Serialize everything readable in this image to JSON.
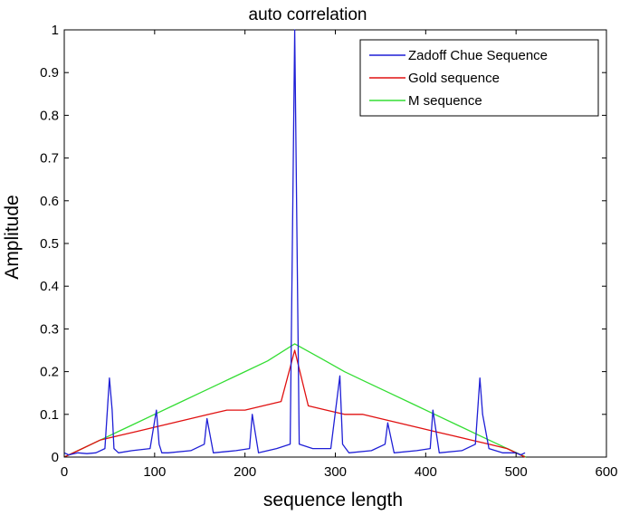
{
  "chart_data": {
    "type": "line",
    "title": "auto correlation",
    "xlabel": "sequence length",
    "ylabel": "Amplitude",
    "xlim": [
      0,
      600
    ],
    "ylim": [
      0,
      1
    ],
    "xticks": [
      "0",
      "100",
      "200",
      "300",
      "400",
      "500",
      "600"
    ],
    "yticks": [
      "0",
      "0.1",
      "0.2",
      "0.3",
      "0.4",
      "0.5",
      "0.6",
      "0.7",
      "0.8",
      "0.9",
      "1"
    ],
    "grid": false,
    "legend_position": "top-right",
    "series": [
      {
        "name": "Zadoff Chue Sequence",
        "color": "#1f1fd6",
        "x": [
          0,
          5,
          15,
          25,
          35,
          45,
          50,
          53,
          55,
          60,
          75,
          95,
          102,
          105,
          108,
          115,
          140,
          155,
          158,
          165,
          190,
          205,
          208,
          215,
          235,
          250,
          255,
          260,
          275,
          295,
          305,
          308,
          315,
          340,
          355,
          358,
          365,
          390,
          405,
          408,
          415,
          440,
          455,
          460,
          463,
          470,
          485,
          500,
          505,
          510
        ],
        "y": [
          0.01,
          0.005,
          0.01,
          0.008,
          0.01,
          0.02,
          0.185,
          0.11,
          0.02,
          0.01,
          0.015,
          0.02,
          0.11,
          0.03,
          0.01,
          0.01,
          0.015,
          0.03,
          0.09,
          0.01,
          0.015,
          0.02,
          0.1,
          0.01,
          0.02,
          0.03,
          1.0,
          0.03,
          0.02,
          0.02,
          0.19,
          0.03,
          0.01,
          0.015,
          0.03,
          0.08,
          0.01,
          0.015,
          0.02,
          0.11,
          0.01,
          0.015,
          0.03,
          0.185,
          0.1,
          0.02,
          0.01,
          0.01,
          0.005,
          0.01
        ]
      },
      {
        "name": "Gold sequence",
        "color": "#e01010",
        "x": [
          0,
          20,
          40,
          60,
          80,
          100,
          120,
          140,
          160,
          180,
          200,
          220,
          240,
          255,
          270,
          290,
          310,
          330,
          350,
          370,
          390,
          410,
          430,
          450,
          470,
          490,
          510
        ],
        "y": [
          0.0,
          0.02,
          0.04,
          0.05,
          0.06,
          0.07,
          0.08,
          0.09,
          0.1,
          0.11,
          0.11,
          0.12,
          0.13,
          0.25,
          0.12,
          0.11,
          0.1,
          0.1,
          0.09,
          0.08,
          0.07,
          0.06,
          0.05,
          0.04,
          0.03,
          0.02,
          0.0
        ]
      },
      {
        "name": "M sequence",
        "color": "#33dd33",
        "x": [
          0,
          25,
          50,
          75,
          100,
          125,
          150,
          175,
          200,
          225,
          255,
          285,
          310,
          335,
          360,
          385,
          410,
          435,
          460,
          485,
          511
        ],
        "y": [
          0.0,
          0.025,
          0.05,
          0.075,
          0.1,
          0.125,
          0.15,
          0.175,
          0.2,
          0.225,
          0.265,
          0.23,
          0.2,
          0.175,
          0.15,
          0.125,
          0.1,
          0.075,
          0.05,
          0.025,
          0.0
        ]
      }
    ]
  }
}
